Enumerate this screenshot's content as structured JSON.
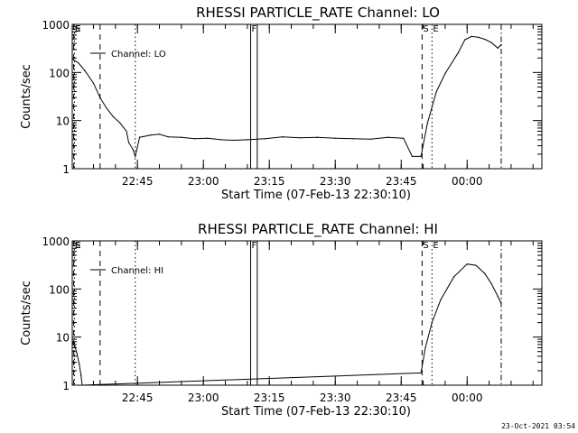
{
  "chart_data": [
    {
      "type": "line",
      "title": "RHESSI PARTICLE_RATE Channel: LO",
      "xlabel": "Start Time (07-Feb-13 22:30:10)",
      "ylabel": "Counts/sec",
      "yscale": "log",
      "ylim": [
        1,
        1000
      ],
      "xlim": [
        "22:30:10",
        "00:17:00"
      ],
      "x_ticks": [
        "22:45",
        "23:00",
        "23:15",
        "23:30",
        "23:45",
        "00:00"
      ],
      "y_ticks": [
        "1",
        "10",
        "100",
        "1000"
      ],
      "legend": {
        "label": "Channel: LO",
        "placement": "top-left"
      },
      "markers": [
        {
          "time": "22:30:30",
          "label": "S",
          "style": "dashed"
        },
        {
          "time": "22:30:40",
          "label": "E",
          "style": "dotted"
        },
        {
          "time": "22:36:30",
          "label": "",
          "style": "dashed"
        },
        {
          "time": "22:44:30",
          "label": "",
          "style": "dotted"
        },
        {
          "time": "23:10:45",
          "label": "F",
          "style": "solid"
        },
        {
          "time": "23:12:15",
          "label": "",
          "style": "solid"
        },
        {
          "time": "23:49:45",
          "label": "S",
          "style": "dashed"
        },
        {
          "time": "23:52:00",
          "label": "E",
          "style": "dotted"
        },
        {
          "time": "00:07:45",
          "label": "",
          "style": "dashdot"
        }
      ],
      "series": [
        {
          "name": "Channel: LO",
          "x": [
            "22:30:10",
            "22:31:30",
            "22:33:00",
            "22:35:00",
            "22:36:30",
            "22:38:00",
            "22:39:30",
            "22:41:00",
            "22:42:30",
            "22:43:00",
            "22:44:00",
            "22:44:30",
            "22:45:30",
            "22:48:00",
            "22:50:00",
            "22:52:00",
            "22:55:00",
            "22:58:00",
            "23:01:00",
            "23:04:00",
            "23:07:00",
            "23:10:00",
            "23:14:00",
            "23:18:00",
            "23:22:00",
            "23:26:00",
            "23:30:00",
            "23:34:00",
            "23:38:00",
            "23:42:00",
            "23:45:30",
            "23:47:30",
            "23:49:30",
            "23:51:00",
            "23:53:00",
            "23:55:00",
            "23:58:00",
            "23:59:30",
            "00:01:00",
            "00:02:30",
            "00:04:00",
            "00:05:30",
            "00:07:00",
            "00:07:45"
          ],
          "values": [
            190,
            160,
            110,
            60,
            30,
            18,
            12,
            9,
            6,
            3.5,
            2.5,
            1.8,
            4.5,
            5,
            5.2,
            4.6,
            4.5,
            4.2,
            4.3,
            4,
            3.9,
            4,
            4.2,
            4.6,
            4.4,
            4.5,
            4.3,
            4.2,
            4.1,
            4.5,
            4.3,
            1.8,
            1.8,
            9,
            40,
            95,
            260,
            480,
            560,
            540,
            490,
            420,
            320,
            380
          ]
        }
      ]
    },
    {
      "type": "line",
      "title": "RHESSI PARTICLE_RATE Channel: HI",
      "xlabel": "Start Time (07-Feb-13 22:30:10)",
      "ylabel": "Counts/sec",
      "yscale": "log",
      "ylim": [
        1,
        1000
      ],
      "xlim": [
        "22:30:10",
        "00:17:00"
      ],
      "x_ticks": [
        "22:45",
        "23:00",
        "23:15",
        "23:30",
        "23:45",
        "00:00"
      ],
      "y_ticks": [
        "1",
        "10",
        "100",
        "1000"
      ],
      "legend": {
        "label": "Channel: HI",
        "placement": "top-left"
      },
      "markers": [
        {
          "time": "22:30:30",
          "label": "S",
          "style": "dashed"
        },
        {
          "time": "22:30:40",
          "label": "E",
          "style": "dotted"
        },
        {
          "time": "22:36:30",
          "label": "",
          "style": "dashed"
        },
        {
          "time": "22:44:30",
          "label": "",
          "style": "dotted"
        },
        {
          "time": "23:10:45",
          "label": "F",
          "style": "solid"
        },
        {
          "time": "23:12:15",
          "label": "",
          "style": "solid"
        },
        {
          "time": "23:49:45",
          "label": "S",
          "style": "dashed"
        },
        {
          "time": "23:52:00",
          "label": "E",
          "style": "dotted"
        },
        {
          "time": "00:07:45",
          "label": "",
          "style": "dashdot"
        }
      ],
      "series": [
        {
          "name": "Channel: HI",
          "x": [
            "22:30:10",
            "22:30:45",
            "22:31:15",
            "22:31:45",
            "22:32:10",
            "22:32:25",
            "23:49:30",
            "23:50:30",
            "23:52:00",
            "23:54:00",
            "23:57:00",
            "24:00:00",
            "00:02:00",
            "00:04:00",
            "00:05:30",
            "00:07:00",
            "00:07:45"
          ],
          "values": [
            8,
            6.5,
            4.5,
            2.8,
            1.6,
            1,
            1.8,
            6,
            20,
            60,
            180,
            330,
            310,
            210,
            130,
            70,
            50
          ]
        }
      ]
    }
  ],
  "footer": {
    "timestamp": "23-Oct-2021 03:54"
  }
}
